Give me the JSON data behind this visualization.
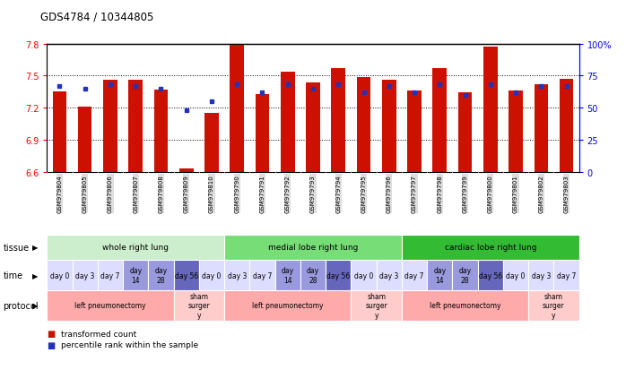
{
  "title": "GDS4784 / 10344805",
  "samples": [
    "GSM979804",
    "GSM979805",
    "GSM979806",
    "GSM979807",
    "GSM979808",
    "GSM979809",
    "GSM979810",
    "GSM979790",
    "GSM979791",
    "GSM979792",
    "GSM979793",
    "GSM979794",
    "GSM979795",
    "GSM979796",
    "GSM979797",
    "GSM979798",
    "GSM979799",
    "GSM979800",
    "GSM979801",
    "GSM979802",
    "GSM979803"
  ],
  "red_values": [
    7.35,
    7.21,
    7.46,
    7.46,
    7.37,
    6.63,
    7.15,
    7.8,
    7.33,
    7.54,
    7.44,
    7.57,
    7.49,
    7.46,
    7.36,
    7.57,
    7.34,
    7.77,
    7.36,
    7.42,
    7.47
  ],
  "blue_values": [
    67,
    65,
    68,
    67,
    65,
    48,
    55,
    68,
    62,
    68,
    65,
    68,
    62,
    67,
    62,
    68,
    60,
    68,
    62,
    67,
    67
  ],
  "ylim_left": [
    6.6,
    7.8
  ],
  "ylim_right": [
    0,
    100
  ],
  "yticks_left": [
    6.6,
    6.9,
    7.2,
    7.5,
    7.8
  ],
  "yticks_right": [
    0,
    25,
    50,
    75,
    100
  ],
  "ytick_labels_left": [
    "6.6",
    "6.9",
    "7.2",
    "7.5",
    "7.8"
  ],
  "ytick_labels_right": [
    "0",
    "25",
    "50",
    "75",
    "100%"
  ],
  "bar_color": "#cc1100",
  "dot_color": "#2233bb",
  "tissue_row": {
    "label": "tissue",
    "groups": [
      {
        "text": "whole right lung",
        "start": 0,
        "end": 7,
        "color": "#cceecc"
      },
      {
        "text": "medial lobe right lung",
        "start": 7,
        "end": 14,
        "color": "#77dd77"
      },
      {
        "text": "cardiac lobe right lung",
        "start": 14,
        "end": 21,
        "color": "#33bb33"
      }
    ]
  },
  "time_row": {
    "label": "time",
    "cells": [
      {
        "text": "day 0",
        "color": "#ddddff"
      },
      {
        "text": "day 3",
        "color": "#ddddff"
      },
      {
        "text": "day 7",
        "color": "#ddddff"
      },
      {
        "text": "day\n14",
        "color": "#9999dd"
      },
      {
        "text": "day\n28",
        "color": "#9999dd"
      },
      {
        "text": "day 56",
        "color": "#6666bb"
      },
      {
        "text": "day 0",
        "color": "#ddddff"
      },
      {
        "text": "day 3",
        "color": "#ddddff"
      },
      {
        "text": "day 7",
        "color": "#ddddff"
      },
      {
        "text": "day\n14",
        "color": "#9999dd"
      },
      {
        "text": "day\n28",
        "color": "#9999dd"
      },
      {
        "text": "day 56",
        "color": "#6666bb"
      },
      {
        "text": "day 0",
        "color": "#ddddff"
      },
      {
        "text": "day 3",
        "color": "#ddddff"
      },
      {
        "text": "day 7",
        "color": "#ddddff"
      },
      {
        "text": "day\n14",
        "color": "#9999dd"
      },
      {
        "text": "day\n28",
        "color": "#9999dd"
      },
      {
        "text": "day 56",
        "color": "#6666bb"
      },
      {
        "text": "day 0",
        "color": "#ddddff"
      },
      {
        "text": "day 3",
        "color": "#ddddff"
      },
      {
        "text": "day 7",
        "color": "#ddddff"
      }
    ]
  },
  "protocol_row": {
    "label": "protocol",
    "groups": [
      {
        "text": "left pneumonectomy",
        "start": 0,
        "end": 5,
        "color": "#ffaaaa"
      },
      {
        "text": "sham\nsurger\ny",
        "start": 5,
        "end": 7,
        "color": "#ffcccc"
      },
      {
        "text": "left pneumonectomy",
        "start": 7,
        "end": 12,
        "color": "#ffaaaa"
      },
      {
        "text": "sham\nsurger\ny",
        "start": 12,
        "end": 14,
        "color": "#ffcccc"
      },
      {
        "text": "left pneumonectomy",
        "start": 14,
        "end": 19,
        "color": "#ffaaaa"
      },
      {
        "text": "sham\nsurger\ny",
        "start": 19,
        "end": 21,
        "color": "#ffcccc"
      }
    ]
  },
  "legend": [
    {
      "label": "transformed count",
      "color": "#cc1100"
    },
    {
      "label": "percentile rank within the sample",
      "color": "#2233bb"
    }
  ]
}
